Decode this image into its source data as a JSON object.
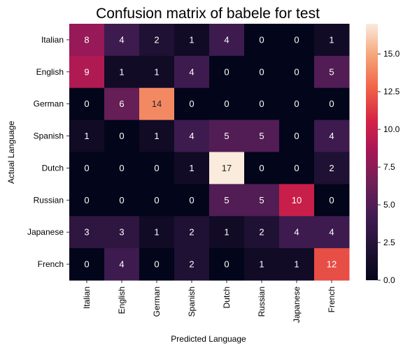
{
  "chart_data": {
    "type": "heatmap",
    "title": "Confusion matrix of babele for test",
    "xlabel": "Predicted Language",
    "ylabel": "Actual Language",
    "x_categories": [
      "Italian",
      "English",
      "German",
      "Spanish",
      "Dutch",
      "Russian",
      "Japanese",
      "French"
    ],
    "y_categories": [
      "Italian",
      "English",
      "German",
      "Spanish",
      "Dutch",
      "Russian",
      "Japanese",
      "French"
    ],
    "values": [
      [
        8,
        4,
        2,
        1,
        4,
        0,
        0,
        1
      ],
      [
        9,
        1,
        1,
        4,
        0,
        0,
        0,
        5
      ],
      [
        0,
        6,
        14,
        0,
        0,
        0,
        0,
        0
      ],
      [
        1,
        0,
        1,
        4,
        5,
        5,
        0,
        4
      ],
      [
        0,
        0,
        0,
        1,
        17,
        0,
        0,
        2
      ],
      [
        0,
        0,
        0,
        0,
        5,
        5,
        10,
        0
      ],
      [
        3,
        3,
        1,
        2,
        1,
        2,
        4,
        4
      ],
      [
        0,
        4,
        0,
        2,
        0,
        1,
        1,
        12
      ]
    ],
    "colorbar": {
      "range": [
        0,
        17
      ],
      "ticks": [
        "0.0",
        "2.5",
        "5.0",
        "7.5",
        "10.0",
        "12.5",
        "15.0"
      ],
      "colormap": "rocket"
    }
  }
}
